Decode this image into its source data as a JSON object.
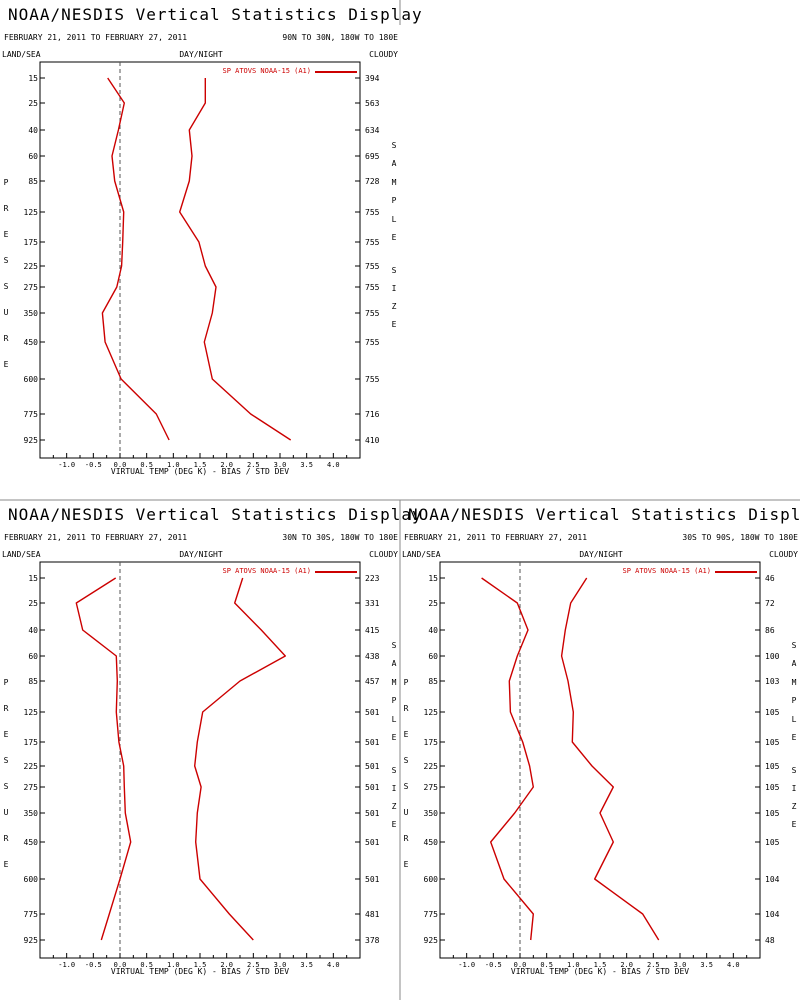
{
  "layout": {
    "divider_color": "#888888",
    "line_color": "#cc0000"
  },
  "chart_data": [
    {
      "type": "line",
      "title": "NOAA/NESDIS Vertical Statistics Display",
      "date_range": "FEBRUARY 21, 2011 TO FEBRUARY 27, 2011",
      "region": "90N TO 30N, 180W TO 180E",
      "header_left": "LAND/SEA",
      "header_center": "DAY/NIGHT",
      "header_right": "CLOUDY",
      "xlabel": "VIRTUAL TEMP (DEG K) - BIAS / STD DEV",
      "ylabel_left": "PRESSURE",
      "ylabel_right": "SAMPLE SIZE",
      "legend": "SP ATOVS NOAA-15 (A1)",
      "legend_placement": "top-right",
      "xlim": [
        -1.5,
        4.5
      ],
      "x_ticks": [
        "-1.0",
        "-0.5",
        "0.0",
        "0.5",
        "1.0",
        "1.5",
        "2.0",
        "2.5",
        "3.0",
        "3.5",
        "4.0"
      ],
      "pressure_levels": [
        "15",
        "25",
        "40",
        "60",
        "85",
        "125",
        "175",
        "225",
        "275",
        "350",
        "450",
        "600",
        "775",
        "925"
      ],
      "sample_size": [
        "394",
        "563",
        "634",
        "695",
        "728",
        "755",
        "755",
        "755",
        "755",
        "755",
        "755",
        "755",
        "716",
        "410"
      ],
      "series": [
        {
          "name": "bias",
          "values": [
            -0.23,
            0.08,
            -0.03,
            -0.15,
            -0.1,
            0.07,
            0.05,
            0.03,
            -0.06,
            -0.33,
            -0.28,
            0.02,
            0.68,
            0.92
          ]
        },
        {
          "name": "std dev",
          "values": [
            1.6,
            1.6,
            1.3,
            1.35,
            1.3,
            1.12,
            1.48,
            1.6,
            1.8,
            1.73,
            1.58,
            1.73,
            2.45,
            3.2
          ]
        }
      ]
    },
    {
      "type": "line",
      "title": "NOAA/NESDIS Vertical Statistics Display",
      "date_range": "FEBRUARY 21, 2011 TO FEBRUARY 27, 2011",
      "region": "30N TO 30S, 180W TO 180E",
      "header_left": "LAND/SEA",
      "header_center": "DAY/NIGHT",
      "header_right": "CLOUDY",
      "xlabel": "VIRTUAL TEMP (DEG K) - BIAS / STD DEV",
      "ylabel_left": "PRESSURE",
      "ylabel_right": "SAMPLE SIZE",
      "legend": "SP ATOVS NOAA-15 (A1)",
      "legend_placement": "top-right",
      "xlim": [
        -1.5,
        4.5
      ],
      "x_ticks": [
        "-1.0",
        "-0.5",
        "0.0",
        "0.5",
        "1.0",
        "1.5",
        "2.0",
        "2.5",
        "3.0",
        "3.5",
        "4.0"
      ],
      "pressure_levels": [
        "15",
        "25",
        "40",
        "60",
        "85",
        "125",
        "175",
        "225",
        "275",
        "350",
        "450",
        "600",
        "775",
        "925"
      ],
      "sample_size": [
        "223",
        "331",
        "415",
        "438",
        "457",
        "501",
        "501",
        "501",
        "501",
        "501",
        "501",
        "501",
        "481",
        "378"
      ],
      "series": [
        {
          "name": "bias",
          "values": [
            -0.08,
            -0.82,
            -0.7,
            -0.07,
            -0.05,
            -0.07,
            -0.02,
            0.07,
            0.08,
            0.1,
            0.2,
            0.0,
            -0.2,
            -0.35
          ]
        },
        {
          "name": "std dev",
          "values": [
            2.3,
            2.15,
            2.65,
            3.1,
            2.25,
            1.55,
            1.45,
            1.4,
            1.52,
            1.45,
            1.42,
            1.5,
            2.05,
            2.5
          ]
        }
      ]
    },
    {
      "type": "line",
      "title": "NOAA/NESDIS Vertical Statistics Display",
      "date_range": "FEBRUARY 21, 2011 TO FEBRUARY 27, 2011",
      "region": "30S TO 90S, 180W TO 180E",
      "header_left": "LAND/SEA",
      "header_center": "DAY/NIGHT",
      "header_right": "CLOUDY",
      "xlabel": "VIRTUAL TEMP (DEG K) - BIAS / STD DEV",
      "ylabel_left": "PRESSURE",
      "ylabel_right": "SAMPLE SIZE",
      "legend": "SP ATOVS NOAA-15 (A1)",
      "legend_placement": "top-right",
      "xlim": [
        -1.5,
        4.5
      ],
      "x_ticks": [
        "-1.0",
        "-0.5",
        "0.0",
        "0.5",
        "1.0",
        "1.5",
        "2.0",
        "2.5",
        "3.0",
        "3.5",
        "4.0"
      ],
      "pressure_levels": [
        "15",
        "25",
        "40",
        "60",
        "85",
        "125",
        "175",
        "225",
        "275",
        "350",
        "450",
        "600",
        "775",
        "925"
      ],
      "sample_size": [
        "46",
        "72",
        "86",
        "100",
        "103",
        "105",
        "105",
        "105",
        "105",
        "105",
        "105",
        "104",
        "104",
        "48"
      ],
      "series": [
        {
          "name": "bias",
          "values": [
            -0.72,
            -0.05,
            0.15,
            -0.05,
            -0.2,
            -0.18,
            0.05,
            0.18,
            0.25,
            -0.1,
            -0.55,
            -0.3,
            0.25,
            0.2
          ]
        },
        {
          "name": "std dev",
          "values": [
            1.25,
            0.95,
            0.85,
            0.78,
            0.9,
            1.0,
            0.98,
            1.35,
            1.75,
            1.5,
            1.75,
            1.4,
            2.3,
            2.6
          ]
        }
      ]
    }
  ]
}
